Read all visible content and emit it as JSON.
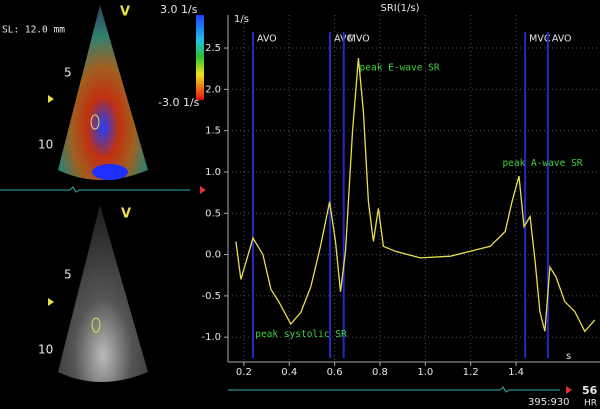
{
  "color_doppler": {
    "slice": "SL: 12.0 mm",
    "view": "V",
    "depth_5": "5",
    "depth_10": "10",
    "scale_max": "3.0 1/s",
    "scale_min": "-3.0 1/s"
  },
  "bmode": {
    "view": "V",
    "depth_5": "5",
    "depth_10": "10"
  },
  "status": {
    "frame": "395:930",
    "hr_value": "56",
    "hr_label": "HR"
  },
  "chart_data": {
    "type": "line",
    "title": "SRI(1/s)",
    "y_label": "1/s",
    "x_label": "s",
    "color": "#e8e04a",
    "grid": true,
    "xlim": [
      0.13,
      1.77
    ],
    "ylim": [
      -1.3,
      2.9
    ],
    "xticks": [
      0.2,
      0.4,
      0.6,
      0.8,
      {
        "value": 1.0,
        "label": "1.0"
      },
      1.2,
      1.4
    ],
    "yticks": [
      -0.5,
      {
        "value": -1.0,
        "label": "-1.0"
      },
      {
        "value": 0.0,
        "label": "0.0"
      },
      0.5,
      {
        "value": 1.0,
        "label": "1.0"
      },
      1.5,
      {
        "value": 2.0,
        "label": "2.0"
      },
      2.5
    ],
    "x": [
      0.165,
      0.187,
      0.24,
      0.284,
      0.319,
      0.354,
      0.407,
      0.451,
      0.495,
      0.538,
      0.578,
      0.604,
      0.626,
      0.648,
      0.679,
      0.705,
      0.727,
      0.749,
      0.771,
      0.793,
      0.815,
      0.868,
      0.978,
      1.11,
      1.198,
      1.286,
      1.352,
      1.382,
      1.413,
      1.435,
      1.462,
      1.484,
      1.505,
      1.527,
      1.549,
      1.576,
      1.615,
      1.659,
      1.703,
      1.747
    ],
    "values": [
      0.16,
      -0.3,
      0.2,
      0,
      -0.42,
      -0.57,
      -0.84,
      -0.7,
      -0.39,
      0.1,
      0.64,
      0.16,
      -0.45,
      0.04,
      1.49,
      2.38,
      1.73,
      0.64,
      0.16,
      0.56,
      0.1,
      0.04,
      -0.04,
      -0.02,
      0.04,
      0.1,
      0.28,
      0.64,
      0.95,
      0.34,
      0.46,
      -0.08,
      -0.69,
      -0.93,
      -0.15,
      -0.27,
      -0.57,
      -0.69,
      -0.93,
      -0.79
    ],
    "events": [
      {
        "label": "AVO",
        "t": 0.24
      },
      {
        "label": "AVC",
        "t": 0.58
      },
      {
        "label": "MVO",
        "t": 0.64
      },
      {
        "label": "MVC",
        "t": 1.44
      },
      {
        "label": "AVO",
        "t": 1.54
      }
    ],
    "annotations": [
      {
        "text": "peak E-wave SR",
        "t": 0.71,
        "v": 2.26
      },
      {
        "text": "peak A-wave SR",
        "t": 1.34,
        "v": 1.1
      },
      {
        "text": "peak systolic SR",
        "t": 0.25,
        "v": -0.97
      }
    ]
  }
}
